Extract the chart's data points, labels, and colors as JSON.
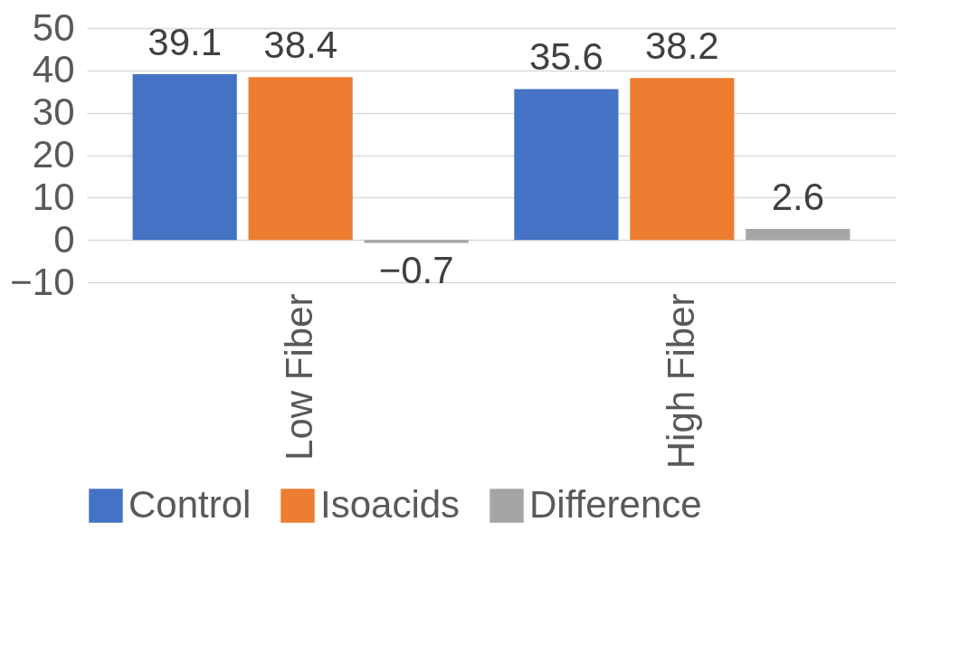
{
  "chart_data": {
    "type": "bar",
    "categories": [
      "Low Fiber",
      "High Fiber"
    ],
    "series": [
      {
        "name": "Control",
        "color": "#4472c4",
        "values": [
          39.1,
          35.6
        ]
      },
      {
        "name": "Isoacids",
        "color": "#ed7d31",
        "values": [
          38.4,
          38.2
        ]
      },
      {
        "name": "Difference",
        "color": "#a5a5a5",
        "values": [
          -0.7,
          2.6
        ]
      }
    ],
    "ylim": [
      -10,
      50
    ],
    "yticks": [
      -10,
      0,
      10,
      20,
      30,
      40,
      50
    ],
    "grid": "y",
    "legend": "bottom",
    "data_labels": true
  }
}
